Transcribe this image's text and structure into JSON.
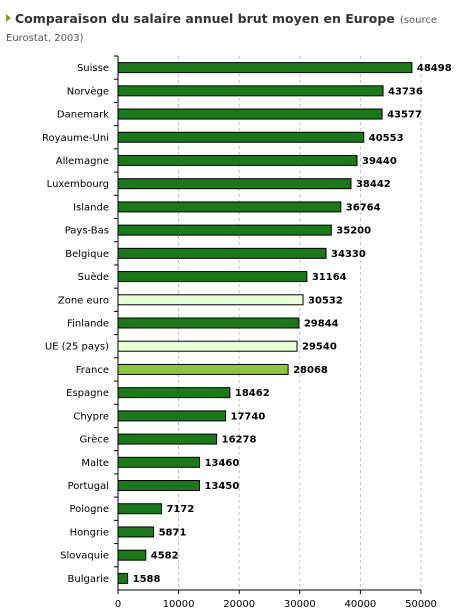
{
  "header": {
    "title": "Comparaison du salaire annuel brut moyen en Europe",
    "source": "(source Eurostat, 2003)"
  },
  "chart_data": {
    "type": "bar",
    "orientation": "horizontal",
    "title": "Comparaison du salaire annuel brut moyen en Europe",
    "subtitle": "(source Eurostat, 2003)",
    "xlabel": "",
    "ylabel": "",
    "xlim": [
      0,
      50000
    ],
    "xticks": [
      0,
      10000,
      20000,
      30000,
      40000,
      50000
    ],
    "grid": true,
    "categories": [
      "Suisse",
      "Norvège",
      "Danemark",
      "Royaume-Uni",
      "Allemagne",
      "Luxembourg",
      "Islande",
      "Pays-Bas",
      "Belgique",
      "Suède",
      "Zone euro",
      "Finlande",
      "UE (25 pays)",
      "France",
      "Espagne",
      "Chypre",
      "Grèce",
      "Malte",
      "Portugal",
      "Pologne",
      "Hongrie",
      "Slovaquie",
      "Bulgarie"
    ],
    "values": [
      48498,
      43736,
      43577,
      40553,
      39440,
      38442,
      36764,
      35200,
      34330,
      31164,
      30532,
      29844,
      29540,
      28068,
      18462,
      17740,
      16278,
      13460,
      13450,
      7172,
      5871,
      4582,
      1588
    ],
    "colors": [
      "#1a7a1a",
      "#1a7a1a",
      "#1a7a1a",
      "#1a7a1a",
      "#1a7a1a",
      "#1a7a1a",
      "#1a7a1a",
      "#1a7a1a",
      "#1a7a1a",
      "#1a7a1a",
      "#e6ffd6",
      "#1a7a1a",
      "#e6ffd6",
      "#8cc63f",
      "#1a7a1a",
      "#1a7a1a",
      "#1a7a1a",
      "#1a7a1a",
      "#1a7a1a",
      "#1a7a1a",
      "#1a7a1a",
      "#1a7a1a",
      "#1a7a1a"
    ]
  }
}
